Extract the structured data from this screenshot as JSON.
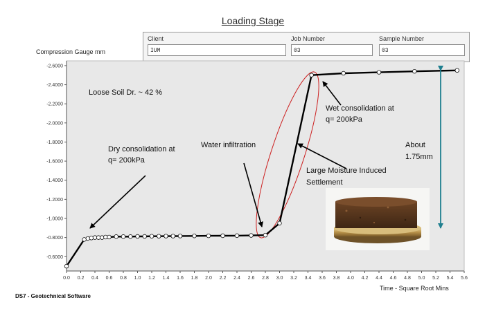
{
  "page": {
    "stage_title": "Loading Stage",
    "gauge_label": "Compression Gauge  mm",
    "time_label": "Time - Square Root Mins",
    "footer": "DS7 - Geotechnical Software"
  },
  "info": {
    "client_label": "Client",
    "client_value": "IUM",
    "job_label": "Job Number",
    "job_value": "03",
    "sample_label": "Sample Number",
    "sample_value": "03"
  },
  "annotations": {
    "loose_soil": "Loose Soil Dr. ~ 42 %",
    "dry_line1": "Dry consolidation at",
    "dry_line2": "q= 200kPa",
    "water": "Water infiltration",
    "wet_line1": "Wet consolidation at",
    "wet_line2": "q= 200kPa",
    "moisture_line1": "Large Moisture Induced",
    "moisture_line2": "Settlement",
    "about_line1": "About",
    "about_line2": "1.75mm"
  },
  "colors": {
    "plot_bg": "#e8e8e8",
    "curve": "#000000",
    "ellipse": "#cc1f1f",
    "arrow_teal": "#1f7f8f"
  },
  "chart_data": {
    "type": "line",
    "xlabel": "Time - Square Root Mins",
    "ylabel": "Compression Gauge  mm",
    "xlim": [
      0.0,
      5.6
    ],
    "ylim": [
      -0.45,
      -2.65
    ],
    "y_inverted": true,
    "grid": false,
    "x_ticks": [
      0.0,
      0.2,
      0.4,
      0.6,
      0.8,
      1.0,
      1.2,
      1.4,
      1.6,
      1.8,
      2.0,
      2.2,
      2.4,
      2.6,
      2.8,
      3.0,
      3.2,
      3.4,
      3.6,
      3.8,
      4.0,
      4.2,
      4.4,
      4.6,
      4.8,
      5.0,
      5.2,
      5.4,
      5.6
    ],
    "x_tick_labels": [
      "0.0",
      "0.2",
      "0.4",
      "0.6",
      "0.8",
      "1.0",
      "1.2",
      "1.4",
      "1.6",
      "1.8",
      "2.0",
      "2.2",
      "2.4",
      "2.6",
      "2.8",
      "3.0",
      "3.2",
      "3.4",
      "3.6",
      "3.8",
      "4.0",
      "4.2",
      "4.4",
      "4.6",
      "4.8",
      "5.0",
      "5.2",
      "5.4",
      "5.6"
    ],
    "y_ticks": [
      -0.6,
      -0.8,
      -1.0,
      -1.2,
      -1.4,
      -1.6,
      -1.8,
      -2.0,
      -2.2,
      -2.4,
      -2.6
    ],
    "y_tick_labels": [
      "-0.6000",
      "-0.8000",
      "-1.0000",
      "-1.2000",
      "-1.4000",
      "-1.6000",
      "-1.8000",
      "-2.0000",
      "-2.2000",
      "-2.4000",
      "-2.6000"
    ],
    "series": [
      {
        "x": [
          0.0,
          0.25,
          0.3,
          0.35,
          0.4,
          0.45,
          0.5,
          0.55,
          0.6,
          0.7,
          0.8,
          0.9,
          1.0,
          1.1,
          1.2,
          1.3,
          1.4,
          1.5,
          1.6,
          1.8,
          2.0,
          2.2,
          2.4,
          2.6,
          2.8,
          3.0,
          3.45,
          3.9,
          4.4,
          4.9,
          5.5
        ],
        "values": [
          -0.5,
          -0.78,
          -0.79,
          -0.795,
          -0.8,
          -0.8,
          -0.8,
          -0.805,
          -0.805,
          -0.81,
          -0.81,
          -0.81,
          -0.812,
          -0.812,
          -0.814,
          -0.814,
          -0.815,
          -0.815,
          -0.816,
          -0.817,
          -0.818,
          -0.819,
          -0.82,
          -0.822,
          -0.825,
          -0.95,
          -2.5,
          -2.52,
          -2.53,
          -2.54,
          -2.55
        ]
      }
    ]
  }
}
